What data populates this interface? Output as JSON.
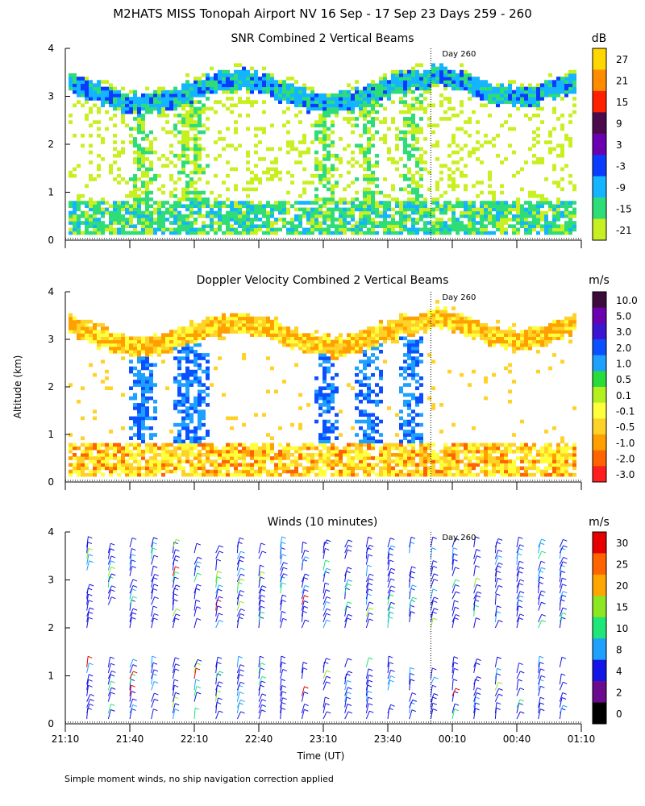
{
  "title": "M2HATS MISS Tonopah Airport NV  16 Sep - 17 Sep 23 Days 259 - 260",
  "ylabel": "Altitude (km)",
  "xlabel": "Time (UT)",
  "footnote": "Simple moment winds, no ship navigation correction applied",
  "x_ticks": [
    "21:10",
    "21:40",
    "22:10",
    "22:40",
    "23:10",
    "23:40",
    "00:10",
    "00:40",
    "01:10"
  ],
  "y_ticks": [
    "0",
    "1",
    "2",
    "3",
    "4"
  ],
  "day_marker": {
    "label": "Day 260",
    "time": "00:00"
  },
  "chart_data": [
    {
      "type": "heatmap",
      "title": "SNR Combined 2 Vertical Beams",
      "units": "dB",
      "ylim": [
        0,
        4
      ],
      "xlim": [
        "21:10",
        "01:10"
      ],
      "colorbar": {
        "labels": [
          "27",
          "21",
          "15",
          "9",
          "3",
          "-3",
          "-9",
          "-15",
          "-21"
        ],
        "colors": [
          "#ffd700",
          "#ff8c00",
          "#ff2000",
          "#4b0a4b",
          "#6a00b0",
          "#0a3cff",
          "#14b4ff",
          "#2edc78",
          "#c8f020"
        ]
      },
      "features": [
        {
          "description": "boundary layer top band",
          "altitude_km": [
            2.9,
            3.4
          ],
          "snr_db": [
            -9,
            -3
          ]
        },
        {
          "description": "near-surface returns",
          "altitude_km": [
            0.1,
            0.8
          ],
          "snr_db": [
            -21,
            -9
          ]
        },
        {
          "description": "convective plumes",
          "times": [
            "21:45",
            "22:05",
            "22:30",
            "23:20",
            "23:45"
          ]
        }
      ]
    },
    {
      "type": "heatmap",
      "title": "Doppler Velocity Combined 2 Vertical Beams",
      "units": "m/s",
      "ylim": [
        0,
        4
      ],
      "xlim": [
        "21:10",
        "01:10"
      ],
      "colorbar": {
        "labels": [
          "10.0",
          "5.0",
          "3.0",
          "2.0",
          "1.0",
          "0.5",
          "0.1",
          "-0.1",
          "-0.5",
          "-1.0",
          "-2.0",
          "-3.0"
        ],
        "colors": [
          "#3c0a3c",
          "#6a00b0",
          "#3c14d2",
          "#0a50ff",
          "#1ea0ff",
          "#28dc3c",
          "#b4f020",
          "#ffff3c",
          "#ffd228",
          "#ffa000",
          "#ff6400",
          "#ff1e1e"
        ]
      },
      "features": [
        {
          "description": "velocity band near boundary layer top",
          "altitude_km": [
            2.9,
            3.4
          ],
          "velocity_ms": [
            -1.0,
            0.5
          ]
        },
        {
          "description": "updraft column",
          "time": "22:05",
          "altitude_km": [
            0.5,
            3.0
          ],
          "velocity_ms": [
            1.0,
            2.0
          ]
        },
        {
          "description": "near-surface turbulent mixing",
          "altitude_km": [
            0.1,
            1.0
          ]
        }
      ]
    },
    {
      "type": "other",
      "title": "Winds (10 minutes)",
      "units": "m/s",
      "ylim": [
        0,
        4
      ],
      "xlim": [
        "21:10",
        "01:10"
      ],
      "colorbar": {
        "labels": [
          "30",
          "25",
          "20",
          "15",
          "10",
          "8",
          "4",
          "2",
          "0"
        ],
        "colors": [
          "#e60000",
          "#ff6400",
          "#ffa500",
          "#8ce620",
          "#1ee678",
          "#1ea0ff",
          "#1414e6",
          "#6a0a8c",
          "#000000"
        ]
      },
      "profile_times": [
        "21:20",
        "21:30",
        "21:40",
        "21:50",
        "22:00",
        "22:10",
        "22:20",
        "22:30",
        "22:40",
        "22:50",
        "23:00",
        "23:10",
        "23:20",
        "23:30",
        "23:40",
        "23:50",
        "00:00",
        "00:10",
        "00:20",
        "00:30",
        "00:40",
        "00:50",
        "01:00"
      ],
      "lower_layer_km": [
        0.1,
        1.2
      ],
      "upper_layer_km": [
        2.0,
        3.7
      ],
      "dominant_speed_ms": [
        2,
        8
      ]
    }
  ]
}
